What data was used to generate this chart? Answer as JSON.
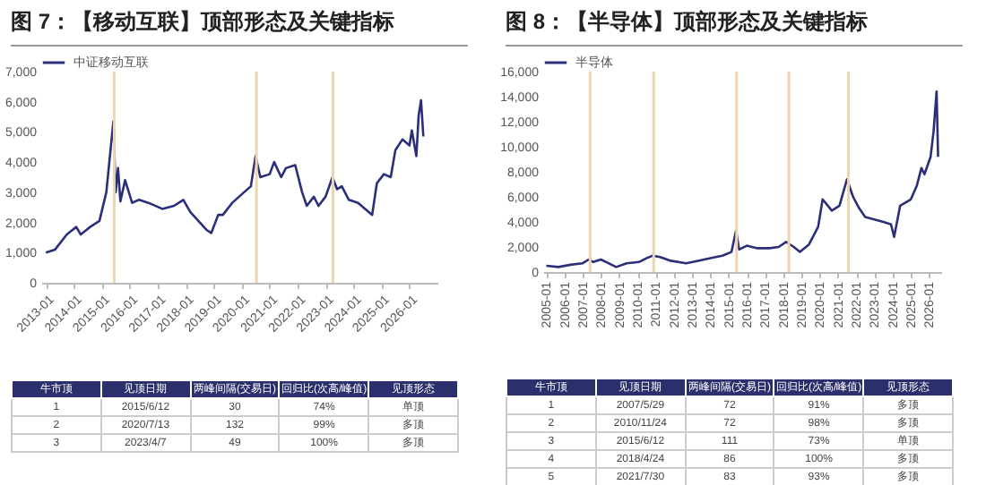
{
  "chart_data": [
    {
      "type": "line",
      "title": "图 7：【移动互联】顶部形态及关键指标",
      "legend": "top",
      "x": [
        "2013-01",
        "2013-05",
        "2013-10",
        "2014-02",
        "2014-04",
        "2014-08",
        "2014-12",
        "2015-03",
        "2015-06",
        "2015-07",
        "2015-08",
        "2015-09",
        "2015-11",
        "2016-02",
        "2016-05",
        "2016-09",
        "2017-03",
        "2017-08",
        "2017-12",
        "2018-03",
        "2018-10",
        "2018-12",
        "2019-03",
        "2019-05",
        "2019-09",
        "2020-02",
        "2020-05",
        "2020-07",
        "2020-09",
        "2021-01",
        "2021-03",
        "2021-06",
        "2021-08",
        "2021-12",
        "2022-03",
        "2022-05",
        "2022-08",
        "2022-10",
        "2023-01",
        "2023-04",
        "2023-06",
        "2023-08",
        "2023-11",
        "2024-03",
        "2024-06",
        "2024-09",
        "2024-11",
        "2025-02",
        "2025-05",
        "2025-07",
        "2025-10",
        "2026-01",
        "2026-02",
        "2026-04",
        "2026-05",
        "2026-06",
        "2026-07"
      ],
      "series": [
        {
          "name": "中证移动互联",
          "color": "#2b2f7a",
          "values": [
            1000,
            1100,
            1600,
            1850,
            1600,
            1850,
            2050,
            3000,
            5350,
            3000,
            3800,
            2700,
            3400,
            2650,
            2750,
            2650,
            2450,
            2550,
            2750,
            2350,
            1750,
            1650,
            2250,
            2250,
            2650,
            3000,
            3200,
            4200,
            3500,
            3600,
            4000,
            3500,
            3800,
            3900,
            3000,
            2550,
            2850,
            2550,
            2850,
            3500,
            3100,
            3200,
            2750,
            2650,
            2450,
            2250,
            3300,
            3600,
            3500,
            4400,
            4750,
            4550,
            5050,
            4200,
            5550,
            6050,
            4850
          ]
        }
      ],
      "xlim": [
        "2012-11",
        "2027-01"
      ],
      "xticks": [
        "2013-01",
        "2014-01",
        "2015-01",
        "2016-01",
        "2017-01",
        "2018-01",
        "2019-01",
        "2020-01",
        "2021-01",
        "2022-01",
        "2023-01",
        "2024-01",
        "2025-01",
        "2026-01"
      ],
      "ylim": [
        0,
        7000
      ],
      "yticks": [
        0,
        {
          "value": 1000,
          "label": "1,000"
        },
        {
          "value": 2000,
          "label": "2,000"
        },
        {
          "value": 3000,
          "label": "3,000"
        },
        {
          "value": 4000,
          "label": "4,000"
        },
        {
          "value": 5000,
          "label": "5,000"
        },
        {
          "value": 6000,
          "label": "6,000"
        },
        {
          "value": 7000,
          "label": "7,000"
        }
      ],
      "ref_lines": [
        {
          "axis": "x",
          "value": "2015-06-12",
          "color": "#ecd5b0"
        },
        {
          "axis": "x",
          "value": "2020-07-13",
          "color": "#ecd5b0"
        },
        {
          "axis": "x",
          "value": "2023-04-07",
          "color": "#ecd5b0"
        }
      ],
      "annotations": [
        "牛市顶",
        "见顶日期",
        "两峰间隔(交易日)",
        "回归比(次高/峰值)",
        "见顶形态",
        "1",
        "2015/6/12",
        "30",
        "74%",
        "单顶",
        "2",
        "2020/7/13",
        "132",
        "99%",
        "多顶",
        "3",
        "2023/4/7",
        "49",
        "100%",
        "多顶"
      ]
    },
    {
      "type": "line",
      "title": "图 8：【半导体】顶部形态及关键指标",
      "legend": "top",
      "x": [
        "2005-01",
        "2005-09",
        "2006-06",
        "2007-01",
        "2007-05",
        "2007-08",
        "2008-01",
        "2008-06",
        "2008-11",
        "2009-06",
        "2010-02",
        "2010-07",
        "2010-11",
        "2011-04",
        "2011-11",
        "2012-09",
        "2013-05",
        "2014-01",
        "2014-09",
        "2015-03",
        "2015-06",
        "2015-08",
        "2016-01",
        "2016-08",
        "2017-04",
        "2017-10",
        "2018-03",
        "2018-08",
        "2018-12",
        "2019-06",
        "2019-12",
        "2020-03",
        "2020-09",
        "2021-02",
        "2021-07",
        "2021-11",
        "2022-03",
        "2022-07",
        "2023-01",
        "2023-07",
        "2023-12",
        "2024-02",
        "2024-06",
        "2025-01",
        "2025-05",
        "2025-08",
        "2025-10",
        "2026-02",
        "2026-04",
        "2026-06",
        "2026-07"
      ],
      "series": [
        {
          "name": "半导体",
          "color": "#2b2f7a",
          "values": [
            500,
            400,
            600,
            700,
            1000,
            800,
            1000,
            700,
            400,
            700,
            800,
            1100,
            1300,
            1200,
            900,
            700,
            900,
            1100,
            1300,
            1600,
            3300,
            1800,
            2100,
            1900,
            1900,
            2000,
            2400,
            2000,
            1600,
            2200,
            3600,
            5800,
            4900,
            5300,
            7400,
            6000,
            5100,
            4400,
            4200,
            4000,
            3800,
            2800,
            5300,
            5800,
            6900,
            8300,
            7800,
            9200,
            11200,
            14400,
            9200
          ]
        }
      ],
      "xlim": [
        "2004-11",
        "2026-09"
      ],
      "xticks": [
        "2005-01",
        "2006-01",
        "2007-01",
        "2008-01",
        "2009-01",
        "2010-01",
        "2011-01",
        "2012-01",
        "2013-01",
        "2014-01",
        "2015-01",
        "2016-01",
        "2017-01",
        "2018-01",
        "2019-01",
        "2020-01",
        "2021-01",
        "2022-01",
        "2023-01",
        "2024-01",
        "2025-01",
        "2026-01"
      ],
      "ylim": [
        0,
        16000
      ],
      "yticks": [
        0,
        {
          "value": 2000,
          "label": "2,000"
        },
        {
          "value": 4000,
          "label": "4,000"
        },
        {
          "value": 6000,
          "label": "6,000"
        },
        {
          "value": 8000,
          "label": "8,000"
        },
        {
          "value": 10000,
          "label": "10,000"
        },
        {
          "value": 12000,
          "label": "12,000"
        },
        {
          "value": 14000,
          "label": "14,000"
        },
        {
          "value": 16000,
          "label": "16,000"
        }
      ],
      "ref_lines": [
        {
          "axis": "x",
          "value": "2007-05-29",
          "color": "#ecd5b0"
        },
        {
          "axis": "x",
          "value": "2010-11-24",
          "color": "#ecd5b0"
        },
        {
          "axis": "x",
          "value": "2015-06-12",
          "color": "#ecd5b0"
        },
        {
          "axis": "x",
          "value": "2018-04-24",
          "color": "#ecd5b0"
        },
        {
          "axis": "x",
          "value": "2021-07-30",
          "color": "#ecd5b0"
        }
      ],
      "annotations": [
        "牛市顶",
        "见顶日期",
        "两峰间隔(交易日)",
        "回归比(次高/峰值)",
        "见顶形态",
        "1",
        "2007/5/29",
        "72",
        "91%",
        "多顶",
        "2",
        "2010/11/24",
        "72",
        "98%",
        "多顶",
        "3",
        "2015/6/12",
        "111",
        "73%",
        "单顶",
        "4",
        "2018/4/24",
        "86",
        "100%",
        "多顶",
        "5",
        "2021/7/30",
        "83",
        "93%",
        "多顶"
      ]
    }
  ]
}
